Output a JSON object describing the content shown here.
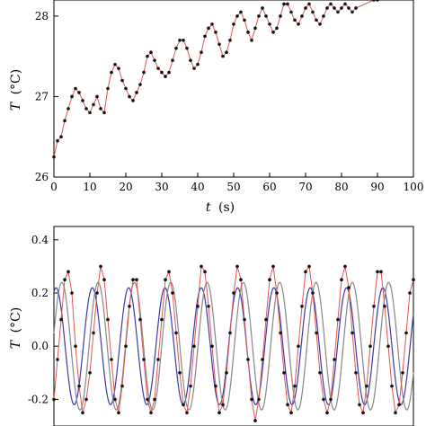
{
  "chart_data": [
    {
      "type": "line",
      "xlabel_var": "t",
      "xlabel_unit": "(s)",
      "ylabel_var": "T",
      "ylabel_unit": "(°C)",
      "xlim": [
        0,
        100
      ],
      "ylim": [
        26,
        28.2
      ],
      "xticks": [
        "0",
        "10",
        "20",
        "30",
        "40",
        "50",
        "60",
        "70",
        "80",
        "90",
        "100"
      ],
      "yticks": [
        "26",
        "27",
        "28"
      ],
      "colors": {
        "points": "#111111",
        "line": "#e05555"
      },
      "series": [
        {
          "x": [
            0,
            1,
            2,
            3,
            4,
            5,
            6,
            7,
            8,
            9,
            10,
            11,
            12,
            13,
            14,
            15,
            16,
            17,
            18,
            19,
            20,
            21,
            22,
            23,
            24,
            25,
            26,
            27,
            28,
            29,
            30,
            31,
            32,
            33,
            34,
            35,
            36,
            37,
            38,
            39,
            40,
            41,
            42,
            43,
            44,
            45,
            46,
            47,
            48,
            49,
            50,
            51,
            52,
            53,
            54,
            55,
            56,
            57,
            58,
            59,
            60,
            61,
            62,
            63,
            64,
            65,
            66,
            67,
            68,
            69,
            70,
            71,
            72,
            73,
            74,
            75,
            76,
            77,
            78,
            79,
            80,
            81,
            82,
            83,
            84,
            89,
            90
          ],
          "y": [
            26.25,
            26.45,
            26.5,
            26.7,
            26.85,
            27.0,
            27.1,
            27.05,
            26.95,
            26.85,
            26.8,
            26.9,
            27.0,
            26.85,
            26.8,
            27.1,
            27.3,
            27.4,
            27.35,
            27.2,
            27.1,
            27.0,
            26.95,
            27.05,
            27.15,
            27.3,
            27.5,
            27.55,
            27.45,
            27.35,
            27.3,
            27.25,
            27.3,
            27.45,
            27.6,
            27.7,
            27.7,
            27.6,
            27.45,
            27.35,
            27.4,
            27.55,
            27.75,
            27.85,
            27.9,
            27.8,
            27.65,
            27.5,
            27.55,
            27.7,
            27.9,
            28.0,
            28.05,
            27.95,
            27.8,
            27.7,
            27.85,
            28.0,
            28.1,
            28.0,
            27.9,
            27.8,
            27.85,
            28.0,
            28.15,
            28.15,
            28.05,
            27.95,
            27.9,
            28.0,
            28.1,
            28.15,
            28.05,
            27.95,
            27.9,
            28.0,
            28.1,
            28.15,
            28.1,
            28.05,
            28.1,
            28.15,
            28.1,
            28.05,
            28.1,
            28.2,
            28.2
          ]
        }
      ]
    },
    {
      "type": "line",
      "ylabel_var": "T",
      "ylabel_unit": "(°C)",
      "xlim": [
        0,
        100
      ],
      "ylim": [
        -0.3,
        0.45
      ],
      "yticks": [
        "0.4",
        "0.2",
        "0.0",
        "-0.2"
      ],
      "colors": {
        "points": "#111111",
        "line": "#e05555",
        "fit_blue": "#3a3aa8",
        "fit_gray": "#888888"
      },
      "fits": [
        {
          "color": "blue",
          "amplitude": 0.22,
          "period": 10.1,
          "phase": 1.2
        },
        {
          "color": "gray",
          "amplitude": 0.24,
          "period": 10.1,
          "phase": 0.2
        }
      ],
      "series": [
        {
          "x": [
            0,
            1,
            2,
            3,
            4,
            5,
            6,
            7,
            8,
            9,
            10,
            11,
            12,
            13,
            14,
            15,
            16,
            17,
            18,
            19,
            20,
            21,
            22,
            23,
            24,
            25,
            26,
            27,
            28,
            29,
            30,
            31,
            32,
            33,
            34,
            35,
            36,
            37,
            38,
            39,
            40,
            41,
            42,
            43,
            44,
            45,
            46,
            47,
            48,
            49,
            50,
            51,
            52,
            53,
            54,
            55,
            56,
            57,
            58,
            59,
            60,
            61,
            62,
            63,
            64,
            65,
            66,
            67,
            68,
            69,
            70,
            71,
            72,
            73,
            74,
            75,
            76,
            77,
            78,
            79,
            80,
            81,
            82,
            83,
            84,
            85,
            86,
            87,
            88,
            89,
            90,
            91,
            92,
            93,
            94,
            95,
            96,
            97,
            98,
            99,
            100
          ],
          "y": [
            -0.2,
            -0.05,
            0.1,
            0.25,
            0.28,
            0.2,
            0.0,
            -0.15,
            -0.25,
            -0.2,
            -0.1,
            0.05,
            0.2,
            0.3,
            0.25,
            0.1,
            -0.05,
            -0.2,
            -0.25,
            -0.15,
            0.0,
            0.15,
            0.25,
            0.25,
            0.1,
            -0.05,
            -0.2,
            -0.25,
            -0.2,
            -0.05,
            0.1,
            0.25,
            0.28,
            0.2,
            0.05,
            -0.1,
            -0.22,
            -0.25,
            -0.15,
            0.0,
            0.15,
            0.3,
            0.28,
            0.15,
            0.0,
            -0.15,
            -0.25,
            -0.22,
            -0.1,
            0.05,
            0.2,
            0.3,
            0.25,
            0.1,
            -0.05,
            -0.2,
            -0.28,
            -0.2,
            -0.05,
            0.1,
            0.25,
            0.3,
            0.2,
            0.05,
            -0.1,
            -0.22,
            -0.25,
            -0.15,
            0.0,
            0.15,
            0.28,
            0.3,
            0.2,
            0.05,
            -0.1,
            -0.2,
            -0.25,
            -0.2,
            -0.05,
            0.1,
            0.25,
            0.3,
            0.22,
            0.05,
            -0.1,
            -0.22,
            -0.25,
            -0.15,
            0.0,
            0.15,
            0.28,
            0.28,
            0.15,
            0.0,
            -0.15,
            -0.25,
            -0.22,
            -0.1,
            0.05,
            0.2,
            0.25
          ]
        }
      ]
    }
  ]
}
